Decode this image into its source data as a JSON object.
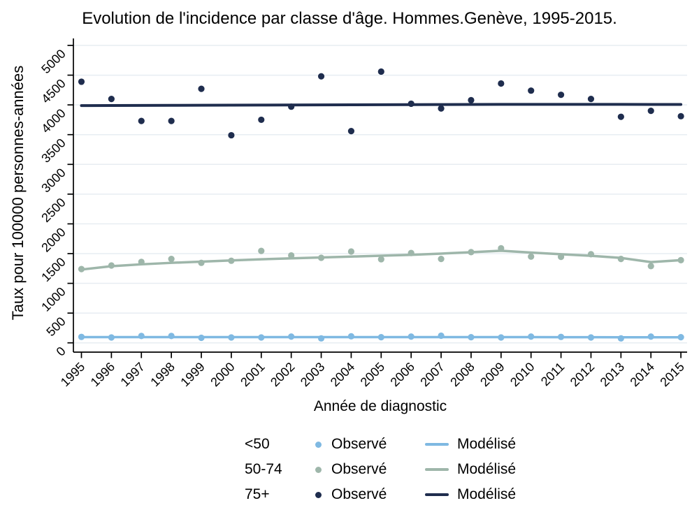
{
  "title": "Evolution de l'incidence par classe d'âge. Hommes.Genève, 1995-2015.",
  "chart_data": {
    "type": "scatter",
    "title": "Evolution de l'incidence par classe d'âge. Hommes.Genève, 1995-2015.",
    "xlabel": "Année de diagnostic",
    "ylabel": "Taux pour 100000 personnes-années",
    "x": [
      1995,
      1996,
      1997,
      1998,
      1999,
      2000,
      2001,
      2002,
      2003,
      2004,
      2005,
      2006,
      2007,
      2008,
      2009,
      2010,
      2011,
      2012,
      2013,
      2014,
      2015
    ],
    "ylim": [
      0,
      5000
    ],
    "ytick_interval": 500,
    "grid": "horizontal",
    "legend_position": "bottom",
    "colors": {
      "age_lt50": "#7FB9E2",
      "age_50_74": "#9EB6AA",
      "age_75plus": "#1F2D4E",
      "gridline": "#E7EDF2",
      "axis": "#000000"
    },
    "series": [
      {
        "name": "<50 Observé",
        "kind": "scatter",
        "color": "#7FB9E2",
        "values": [
          100,
          90,
          115,
          115,
          85,
          90,
          90,
          105,
          75,
          110,
          95,
          105,
          120,
          95,
          90,
          105,
          100,
          90,
          75,
          105,
          95
        ]
      },
      {
        "name": "<50 Modélisé",
        "kind": "line",
        "color": "#7FB9E2",
        "values": [
          97,
          97,
          97,
          97,
          97,
          97,
          97,
          97,
          97,
          97,
          97,
          97,
          97,
          96,
          96,
          96,
          95,
          95,
          94,
          94,
          94
        ]
      },
      {
        "name": "50-74 Observé",
        "kind": "scatter",
        "color": "#9EB6AA",
        "values": [
          1240,
          1300,
          1360,
          1410,
          1345,
          1380,
          1545,
          1470,
          1430,
          1535,
          1405,
          1510,
          1410,
          1525,
          1590,
          1450,
          1445,
          1490,
          1410,
          1290,
          1390
        ]
      },
      {
        "name": "50-74 Modélisé",
        "kind": "line",
        "color": "#9EB6AA",
        "values": [
          1232,
          1288,
          1320,
          1345,
          1365,
          1385,
          1405,
          1420,
          1435,
          1450,
          1465,
          1480,
          1500,
          1523,
          1548,
          1518,
          1490,
          1463,
          1428,
          1358,
          1390
        ]
      },
      {
        "name": "75+ Observé",
        "kind": "scatter",
        "color": "#1F2D4E",
        "values": [
          4390,
          4100,
          3730,
          3730,
          4270,
          3490,
          3750,
          3970,
          4480,
          3560,
          4560,
          4020,
          3940,
          4080,
          4360,
          4240,
          4170,
          4100,
          3800,
          3900,
          3810
        ]
      },
      {
        "name": "75+ Modélisé",
        "kind": "line",
        "color": "#1F2D4E",
        "values": [
          3988,
          3990,
          3991,
          3993,
          3994,
          3996,
          3997,
          3999,
          4000,
          4002,
          4003,
          4005,
          4006,
          4008,
          4009,
          4009,
          4009,
          4009,
          4009,
          4008,
          4008
        ]
      }
    ]
  },
  "legend": {
    "rows": [
      {
        "group": "<50",
        "observed_label": "Observé",
        "modeled_label": "Modélisé",
        "color": "#7FB9E2"
      },
      {
        "group": "50-74",
        "observed_label": "Observé",
        "modeled_label": "Modélisé",
        "color": "#9EB6AA"
      },
      {
        "group": "75+",
        "observed_label": "Observé",
        "modeled_label": "Modélisé",
        "color": "#1F2D4E"
      }
    ]
  }
}
